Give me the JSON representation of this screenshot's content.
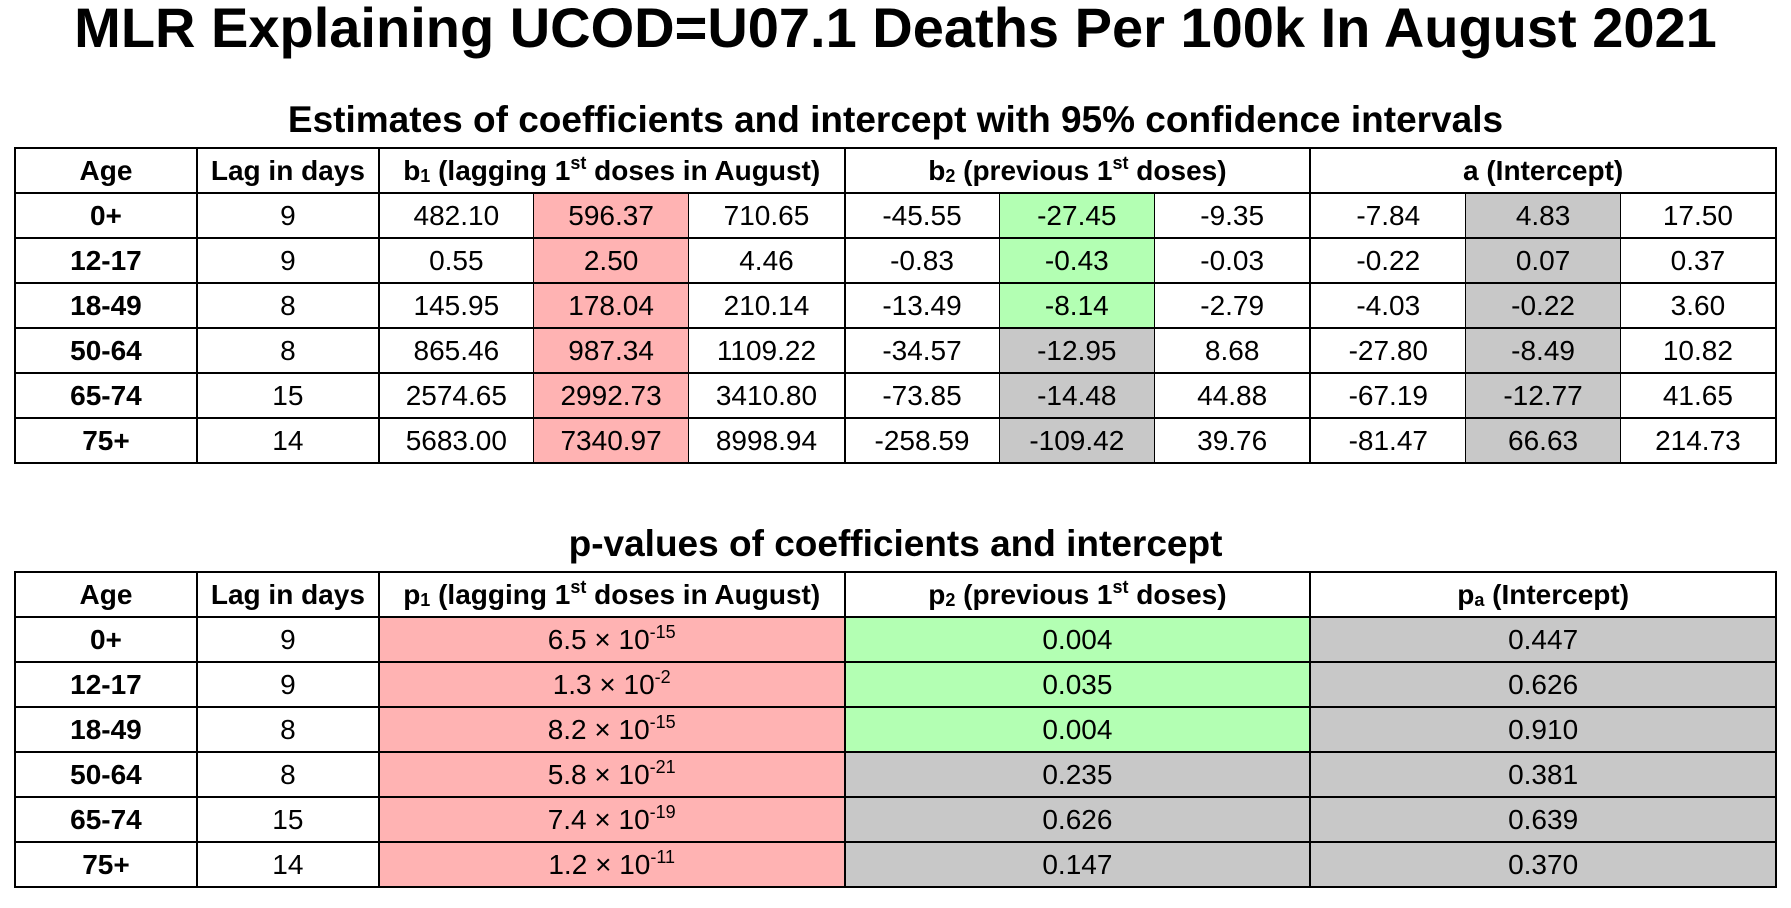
{
  "title": "MLR Explaining UCOD=U07.1 Deaths Per 100k In August 2021",
  "estimates": {
    "title": "Estimates of coefficients and intercept with 95% confidence intervals",
    "headers": {
      "age": "Age",
      "lag": "Lag in days",
      "b1": {
        "sym": "b",
        "sub": "1",
        "pre": " (lagging 1",
        "sup": "st",
        "post": " doses in August)"
      },
      "b2": {
        "sym": "b",
        "sub": "2",
        "pre": " (previous 1",
        "sup": "st",
        "post": " doses)"
      },
      "a": "a (Intercept)"
    },
    "rows": [
      {
        "age": "0+",
        "lag": "9",
        "b1": [
          "482.10",
          "596.37",
          "710.65"
        ],
        "b2": [
          "-45.55",
          "-27.45",
          "-9.35"
        ],
        "a": [
          "-7.84",
          "4.83",
          "17.50"
        ],
        "b2_sig": true
      },
      {
        "age": "12-17",
        "lag": "9",
        "b1": [
          "0.55",
          "2.50",
          "4.46"
        ],
        "b2": [
          "-0.83",
          "-0.43",
          "-0.03"
        ],
        "a": [
          "-0.22",
          "0.07",
          "0.37"
        ],
        "b2_sig": true
      },
      {
        "age": "18-49",
        "lag": "8",
        "b1": [
          "145.95",
          "178.04",
          "210.14"
        ],
        "b2": [
          "-13.49",
          "-8.14",
          "-2.79"
        ],
        "a": [
          "-4.03",
          "-0.22",
          "3.60"
        ],
        "b2_sig": true
      },
      {
        "age": "50-64",
        "lag": "8",
        "b1": [
          "865.46",
          "987.34",
          "1109.22"
        ],
        "b2": [
          "-34.57",
          "-12.95",
          "8.68"
        ],
        "a": [
          "-27.80",
          "-8.49",
          "10.82"
        ],
        "b2_sig": false
      },
      {
        "age": "65-74",
        "lag": "15",
        "b1": [
          "2574.65",
          "2992.73",
          "3410.80"
        ],
        "b2": [
          "-73.85",
          "-14.48",
          "44.88"
        ],
        "a": [
          "-67.19",
          "-12.77",
          "41.65"
        ],
        "b2_sig": false
      },
      {
        "age": "75+",
        "lag": "14",
        "b1": [
          "5683.00",
          "7340.97",
          "8998.94"
        ],
        "b2": [
          "-258.59",
          "-109.42",
          "39.76"
        ],
        "a": [
          "-81.47",
          "66.63",
          "214.73"
        ],
        "b2_sig": false
      }
    ]
  },
  "pvalues": {
    "title": "p-values of coefficients and intercept",
    "headers": {
      "age": "Age",
      "lag": "Lag in days",
      "p1": {
        "sym": "p",
        "sub": "1",
        "pre": " (lagging 1",
        "sup": "st",
        "post": " doses in August)"
      },
      "p2": {
        "sym": "p",
        "sub": "2",
        "pre": " (previous 1",
        "sup": "st",
        "post": " doses)"
      },
      "pa": {
        "sym": "p",
        "sub": "a",
        "pre": " (Intercept)"
      }
    },
    "rows": [
      {
        "age": "0+",
        "lag": "9",
        "p1": {
          "mant": "6.5 × 10",
          "exp": "-15"
        },
        "p2": "0.004",
        "pa": "0.447",
        "p2_sig": true
      },
      {
        "age": "12-17",
        "lag": "9",
        "p1": {
          "mant": "1.3 × 10",
          "exp": "-2"
        },
        "p2": "0.035",
        "pa": "0.626",
        "p2_sig": true
      },
      {
        "age": "18-49",
        "lag": "8",
        "p1": {
          "mant": "8.2 × 10",
          "exp": "-15"
        },
        "p2": "0.004",
        "pa": "0.910",
        "p2_sig": true
      },
      {
        "age": "50-64",
        "lag": "8",
        "p1": {
          "mant": "5.8 × 10",
          "exp": "-21"
        },
        "p2": "0.235",
        "pa": "0.381",
        "p2_sig": false
      },
      {
        "age": "65-74",
        "lag": "15",
        "p1": {
          "mant": "7.4 × 10",
          "exp": "-19"
        },
        "p2": "0.626",
        "pa": "0.639",
        "p2_sig": false
      },
      {
        "age": "75+",
        "lag": "14",
        "p1": {
          "mant": "1.2 × 10",
          "exp": "-11"
        },
        "p2": "0.147",
        "pa": "0.370",
        "p2_sig": false
      }
    ]
  },
  "colors": {
    "b1_fill": "#ffb3b3",
    "significant_fill": "#b3ffb3",
    "insignificant_fill": "#c8c8c8"
  }
}
